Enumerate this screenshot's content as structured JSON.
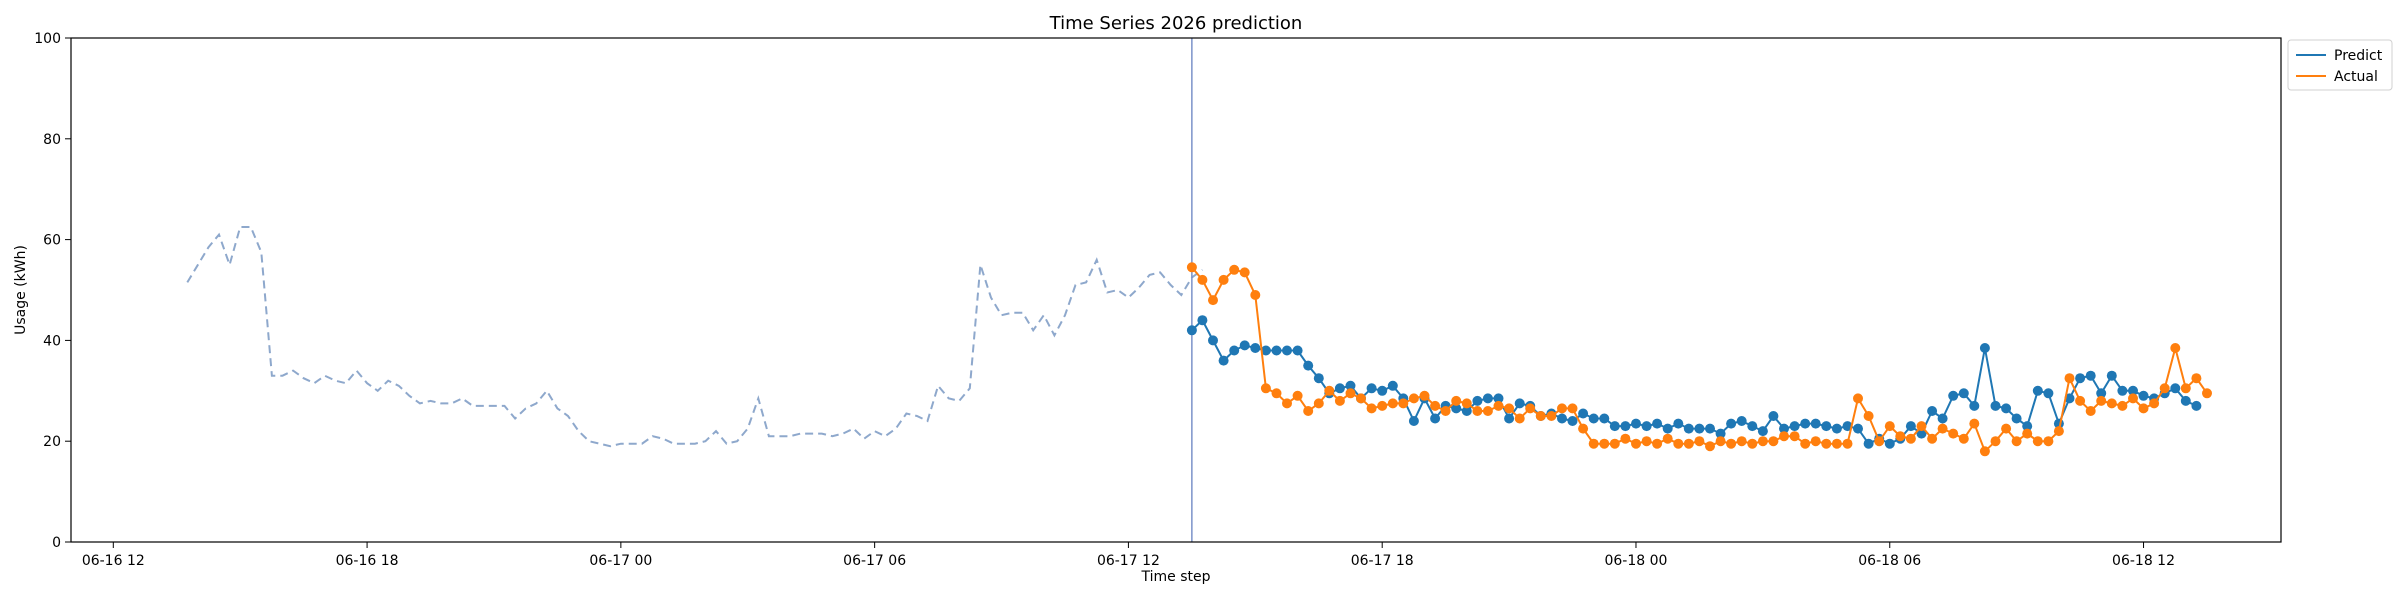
{
  "chart_data": {
    "type": "line",
    "title": "Time Series 2026 prediction",
    "xlabel": "Time step",
    "ylabel": "Usage (kWh)",
    "ylim": [
      0,
      100
    ],
    "yticks": [
      0,
      20,
      40,
      60,
      80,
      100
    ],
    "xlim": [
      "2026-06-16 11:00",
      "2026-06-18 15:15"
    ],
    "xticks": [
      "06-16 12",
      "06-16 18",
      "06-17 00",
      "06-17 06",
      "06-17 12",
      "06-17 18",
      "06-18 00",
      "06-18 06",
      "06-18 12"
    ],
    "xtick_times": [
      "2026-06-16 12:00",
      "2026-06-16 18:00",
      "2026-06-17 00:00",
      "2026-06-17 06:00",
      "2026-06-17 12:00",
      "2026-06-17 18:00",
      "2026-06-18 00:00",
      "2026-06-18 06:00",
      "2026-06-18 12:00"
    ],
    "grid": false,
    "legend": "upper-right-outside",
    "split_time": "2026-06-17 13:30",
    "history": {
      "start": "2026-06-16 13:45",
      "interval_minutes": 15,
      "style": "dashed",
      "values": [
        51.5,
        55,
        58.5,
        61,
        55,
        62.5,
        62.5,
        57.5,
        33,
        33,
        34,
        32.5,
        31.5,
        33,
        32,
        31.5,
        34,
        31.5,
        30,
        32,
        31,
        29,
        27.5,
        28,
        27.5,
        27.5,
        28.5,
        27,
        27,
        27,
        27,
        24.5,
        26.5,
        27.5,
        30,
        26.5,
        25,
        22,
        20,
        19.5,
        19,
        19.5,
        19.5,
        19.5,
        21,
        20.5,
        19.5,
        19.5,
        19.5,
        20,
        22,
        19.5,
        20,
        22.5,
        28.5,
        21,
        21,
        21,
        21.5,
        21.5,
        21.5,
        21,
        21.5,
        22.5,
        20.5,
        22,
        21,
        22.5,
        25.5,
        25,
        24,
        31,
        28.5,
        28,
        30.5,
        55,
        48.5,
        45,
        45.5,
        45.5,
        42,
        45,
        41,
        45,
        51,
        51.5,
        56,
        49.5,
        50,
        48.5,
        50.5,
        53,
        53.5,
        51,
        49,
        52.5,
        54
      ]
    },
    "series": [
      {
        "name": "Predict",
        "start": "2026-06-17 13:30",
        "interval_minutes": 15,
        "values": [
          42,
          44,
          40,
          36,
          38,
          39,
          38.5,
          38,
          38,
          38,
          38,
          35,
          32.5,
          29.5,
          30.5,
          31,
          28.5,
          30.5,
          30,
          31,
          28.5,
          24,
          28.5,
          24.5,
          27,
          26.5,
          26,
          28,
          28.5,
          28.5,
          24.5,
          27.5,
          27,
          25,
          25.5,
          24.5,
          24,
          25.5,
          24.5,
          24.5,
          23,
          23,
          23.5,
          23,
          23.5,
          22.5,
          23.5,
          22.5,
          22.5,
          22.5,
          21.5,
          23.5,
          24,
          23,
          22,
          25,
          22.5,
          23,
          23.5,
          23.5,
          23,
          22.5,
          23,
          22.5,
          19.5,
          20.5,
          19.5,
          20.5,
          23,
          21.5,
          26,
          24.5,
          29,
          29.5,
          27,
          38.5,
          27,
          26.5,
          24.5,
          23,
          30,
          29.5,
          23.5,
          28.5,
          32.5,
          33,
          29.5,
          33,
          30,
          30,
          29,
          28.5,
          29.5,
          30.5,
          28,
          27
        ]
      },
      {
        "name": "Actual",
        "start": "2026-06-17 13:30",
        "interval_minutes": 15,
        "values": [
          54.5,
          52,
          48,
          52,
          54,
          53.5,
          49,
          30.5,
          29.5,
          27.5,
          29,
          26,
          27.5,
          30,
          28,
          29.5,
          28.5,
          26.5,
          27,
          27.5,
          27.5,
          28.5,
          29,
          27,
          26,
          28,
          27.5,
          26,
          26,
          27,
          26.5,
          24.5,
          26.5,
          25,
          25,
          26.5,
          26.5,
          22.5,
          19.5,
          19.5,
          19.5,
          20.5,
          19.5,
          20,
          19.5,
          20.5,
          19.5,
          19.5,
          20,
          19,
          20,
          19.5,
          20,
          19.5,
          20,
          20,
          21,
          21,
          19.5,
          20,
          19.5,
          19.5,
          19.5,
          28.5,
          25,
          20,
          23,
          21,
          20.5,
          23,
          20.5,
          22.5,
          21.5,
          20.5,
          23.5,
          18,
          20,
          22.5,
          20,
          21.5,
          20,
          20,
          22,
          32.5,
          28,
          26,
          28,
          27.5,
          27,
          28.5,
          26.5,
          27.5,
          30.5,
          38.5,
          30.5,
          32.5,
          29.5
        ]
      }
    ]
  },
  "colors": {
    "predict": "#1f77b4",
    "actual": "#ff7f0e",
    "history": "#8ea8cc",
    "split_line": "#7b93c9"
  }
}
